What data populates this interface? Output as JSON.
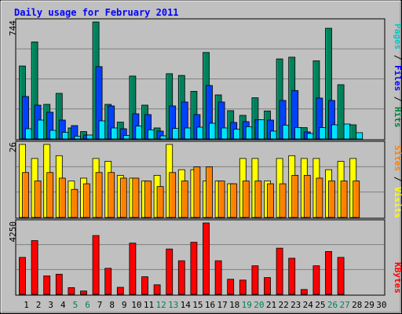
{
  "chart_data": {
    "type": "bar",
    "title": "Daily usage for February 2011",
    "x_categories": [
      "1",
      "2",
      "3",
      "4",
      "5",
      "6",
      "7",
      "8",
      "9",
      "10",
      "11",
      "12",
      "13",
      "14",
      "15",
      "16",
      "17",
      "18",
      "19",
      "20",
      "21",
      "22",
      "23",
      "24",
      "25",
      "26",
      "27",
      "28",
      "29",
      "30"
    ],
    "weekend_days": [
      "5",
      "6",
      "12",
      "13",
      "19",
      "20",
      "26",
      "27"
    ],
    "panels": [
      {
        "id": "hits-files-pages",
        "ymax_label": "744",
        "ylim": [
          0,
          744
        ],
        "label_parts": [
          {
            "text": "Pages",
            "color": "#00c8c8"
          },
          {
            "text": " / ",
            "color": "#000000"
          },
          {
            "text": "Files",
            "color": "#0000ff"
          },
          {
            "text": " / ",
            "color": "#000000"
          },
          {
            "text": "Hits",
            "color": "#008040"
          }
        ],
        "series": [
          {
            "name": "Hits",
            "color": "#00805c",
            "values": [
              464,
              617,
              220,
              290,
              70,
              47,
              744,
              220,
              107,
              400,
              215,
              70,
              415,
              404,
              303,
              550,
              280,
              180,
              150,
              262,
              178,
              509,
              520,
              72,
              497,
              704,
              345,
              90,
              0,
              0
            ]
          },
          {
            "name": "Files",
            "color": "#0040ff",
            "values": [
              270,
              215,
              170,
              120,
              85,
              25,
              460,
              210,
              65,
              160,
              155,
              50,
              210,
              235,
              155,
              340,
              235,
              105,
              110,
              122,
              120,
              245,
              308,
              45,
              260,
              245,
              0,
              0,
              0,
              0
            ]
          },
          {
            "name": "Pages",
            "color": "#00e0ff",
            "values": [
              65,
              120,
              55,
              42,
              18,
              25,
              115,
              70,
              22,
              82,
              58,
              20,
              67,
              70,
              75,
              100,
              70,
              62,
              78,
              122,
              50,
              88,
              73,
              35,
              72,
              90,
              95,
              40,
              0,
              0
            ]
          }
        ]
      },
      {
        "id": "visits-sites",
        "ymax_label": "26",
        "ylim": [
          0,
          26
        ],
        "label_parts": [
          {
            "text": "Sites",
            "color": "#ff8000"
          },
          {
            "text": " / ",
            "color": "#000000"
          },
          {
            "text": "Visits",
            "color": "#ffff00"
          }
        ],
        "series": [
          {
            "name": "Visits",
            "color": "#ffff00",
            "values": [
              26,
              21,
              26,
              22,
              13,
              14,
              21,
              20,
              15,
              14,
              13,
              15,
              26,
              17,
              17,
              13,
              13,
              12,
              21,
              21,
              13,
              21,
              22,
              21,
              21,
              17,
              20,
              21,
              0,
              0
            ]
          },
          {
            "name": "Sites",
            "color": "#ff8000",
            "values": [
              16,
              13,
              16,
              14,
              10,
              12,
              16,
              16,
              14,
              14,
              13,
              11,
              16,
              13,
              18,
              18,
              13,
              12,
              13,
              13,
              12,
              12,
              15,
              15,
              14,
              13,
              13,
              13,
              0,
              0
            ]
          }
        ]
      },
      {
        "id": "kbytes",
        "ymax_label": "4250",
        "ylim": [
          0,
          4250
        ],
        "label_parts": [
          {
            "text": "KBytes",
            "color": "#ff0000"
          }
        ],
        "series": [
          {
            "name": "KBytes",
            "color": "#ff0000",
            "values": [
              2200,
              3200,
              1100,
              1200,
              400,
              200,
              3500,
              1550,
              420,
              3050,
              1050,
              570,
              2700,
              2000,
              3100,
              4250,
              2000,
              900,
              850,
              1700,
              1000,
              2750,
              2150,
              290,
              1700,
              2550,
              2200,
              0,
              0,
              0
            ]
          }
        ]
      }
    ]
  }
}
